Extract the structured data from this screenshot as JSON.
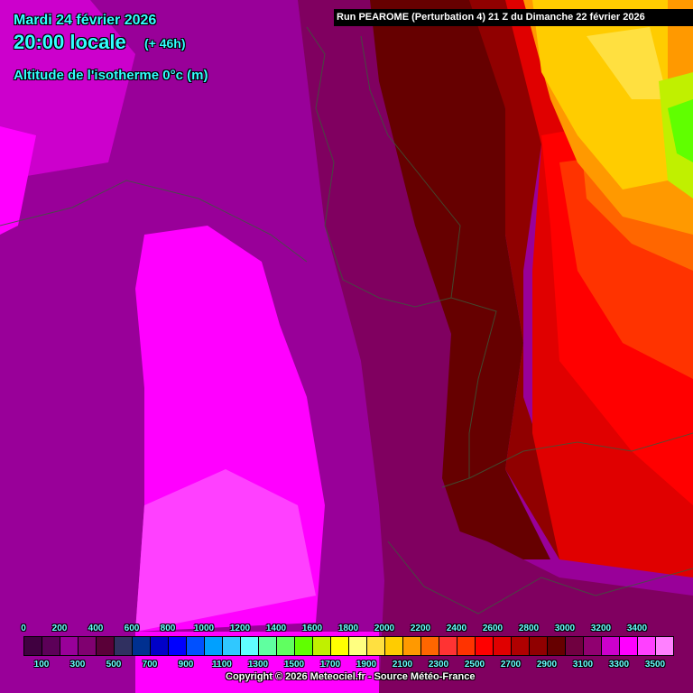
{
  "header": {
    "date": "Mardi 24 février 2026",
    "time": "20:00 locale",
    "lead": "(+ 46h)",
    "parameter": "Altitude de l'isotherme 0°c (m)",
    "run": "Run PEAROME (Perturbation 4) 21 Z du Dimanche 22 février 2026"
  },
  "legend": {
    "top_labels": [
      "0",
      "200",
      "400",
      "600",
      "800",
      "1000",
      "1200",
      "1400",
      "1600",
      "1800",
      "2000",
      "2200",
      "2400",
      "2600",
      "2800",
      "3000",
      "3200",
      "3400"
    ],
    "bottom_labels": [
      "100",
      "300",
      "500",
      "700",
      "900",
      "1100",
      "1300",
      "1500",
      "1700",
      "1900",
      "2100",
      "2300",
      "2500",
      "2700",
      "2900",
      "3100",
      "3300",
      "3500"
    ],
    "colors": [
      "#400040",
      "#5c0058",
      "#990099",
      "#800070",
      "#5a0038",
      "#303060",
      "#003090",
      "#0000c8",
      "#0000ff",
      "#0050ff",
      "#00a0ff",
      "#30c8ff",
      "#60ffff",
      "#60ffa0",
      "#60ff60",
      "#60ff00",
      "#c0f000",
      "#ffff00",
      "#ffff80",
      "#ffe040",
      "#ffcc00",
      "#ff9900",
      "#ff6600",
      "#ff3333",
      "#ff3300",
      "#ff0000",
      "#e00000",
      "#b00000",
      "#900000",
      "#660000",
      "#700040",
      "#900070",
      "#cc00cc",
      "#ff00ff",
      "#ff40ff",
      "#ff80ff"
    ]
  },
  "copyright": "Copyright © 2026 Meteociel.fr - Source Météo-France"
}
